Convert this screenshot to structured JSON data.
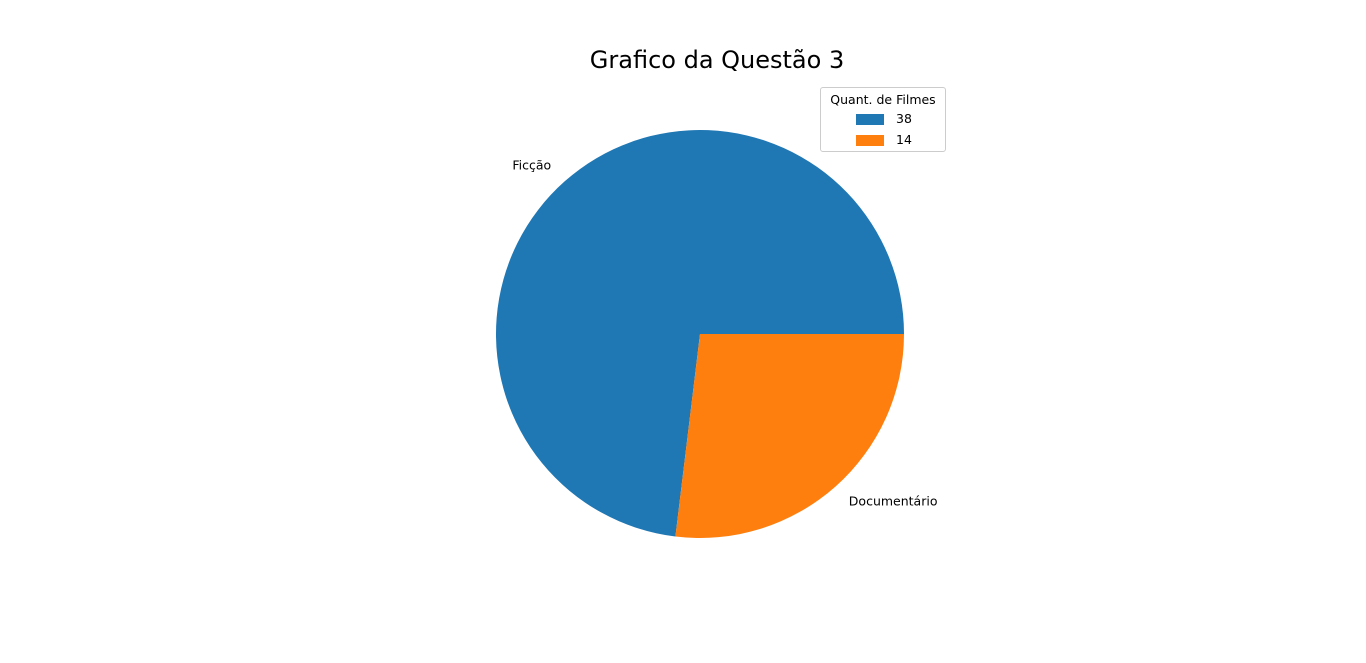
{
  "chart_data": {
    "type": "pie",
    "title": "Grafico da Questão 3",
    "categories": [
      "Ficção",
      "Documentário"
    ],
    "values": [
      38,
      14
    ],
    "colors": [
      "#1f77b4",
      "#ff7f0e"
    ],
    "legend": {
      "title": "Quant. de Filmes",
      "entries": [
        "38",
        "14"
      ],
      "placement": "top-right"
    }
  }
}
